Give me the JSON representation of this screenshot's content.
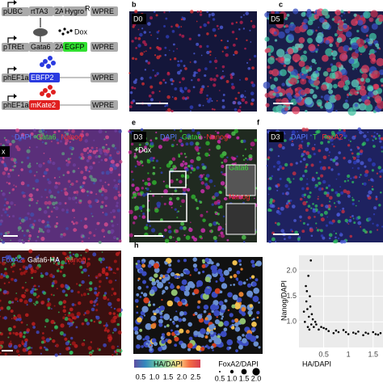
{
  "panel_a": {
    "dox": "Dox",
    "superscript": "R",
    "constructs": [
      {
        "promoter": "pUBC",
        "parts": [
          "rtTA3",
          "2A",
          "Hygro",
          "WPRE"
        ]
      },
      {
        "promoter": "pTREt",
        "parts": [
          "Gata6",
          "2A",
          "EGFP",
          "WPRE"
        ]
      },
      {
        "promoter": "phEF1a",
        "parts": [
          "EBFP2",
          "WPRE"
        ]
      },
      {
        "promoter": "phEF1a",
        "parts": [
          "mKate2",
          "WPRE"
        ]
      }
    ]
  },
  "panel_b": {
    "label": "b",
    "day": "D0"
  },
  "panel_c": {
    "label": "c",
    "day": "D5"
  },
  "panel_d": {
    "label": "x",
    "channels": [
      "DAPI",
      "Gata6",
      "Nanog"
    ]
  },
  "panel_e": {
    "label": "e",
    "day": "D3",
    "channels": [
      "DAPI",
      "Gata6",
      "Nanog"
    ],
    "treatment": "+Dox",
    "insets": [
      "Gata6",
      "Nanog"
    ]
  },
  "panel_f": {
    "label": "f",
    "day": "D3",
    "channels": [
      "DAPI",
      "T",
      "FoxA2"
    ]
  },
  "panel_g": {
    "channels": [
      "FoxA2",
      "Gata6-HA",
      "Nanog"
    ]
  },
  "panel_h": {
    "label": "h",
    "colorbar": {
      "title": "HA/DAPI",
      "ticks": [
        "0.5",
        "1.0",
        "1.5",
        "2.0",
        "2.5"
      ]
    },
    "size_legend": {
      "title": "FoxA2/DAPI",
      "ticks": [
        "0.5",
        "1.0",
        "1.5",
        "2.0"
      ]
    }
  },
  "scatter": {
    "x_label": "HA/DAPI",
    "y_label": "Nanog/DAPI",
    "xlim": [
      0,
      1.7
    ],
    "ylim": [
      0.5,
      2.3
    ],
    "xticks": [
      0.5,
      1,
      1.5
    ],
    "yticks": [
      {
        "value": 1,
        "label": "1.0"
      },
      1.5,
      {
        "value": 2,
        "label": "2.0"
      }
    ],
    "x": [
      0.1,
      0.12,
      0.15,
      0.18,
      0.2,
      0.22,
      0.25,
      0.28,
      0.14,
      0.17,
      0.21,
      0.19,
      0.23,
      0.16,
      0.26,
      0.3,
      0.35,
      0.4,
      0.5,
      0.6,
      0.7,
      0.8,
      0.9,
      1.0,
      1.1,
      1.2,
      1.3,
      1.4,
      1.5,
      1.6,
      1.65,
      0.45,
      0.55,
      0.75,
      0.95,
      1.15,
      1.35,
      1.55,
      0.33,
      0.24
    ],
    "y": [
      1.2,
      1.0,
      1.4,
      0.9,
      1.1,
      1.5,
      0.95,
      1.05,
      1.7,
      1.25,
      0.85,
      1.9,
      1.3,
      1.6,
      1.15,
      0.9,
      0.95,
      0.85,
      0.88,
      0.82,
      0.78,
      0.8,
      0.84,
      0.76,
      0.79,
      0.81,
      0.74,
      0.77,
      0.8,
      0.75,
      0.78,
      0.9,
      0.86,
      0.83,
      0.8,
      0.77,
      0.79,
      0.76,
      1.0,
      2.2
    ]
  }
}
